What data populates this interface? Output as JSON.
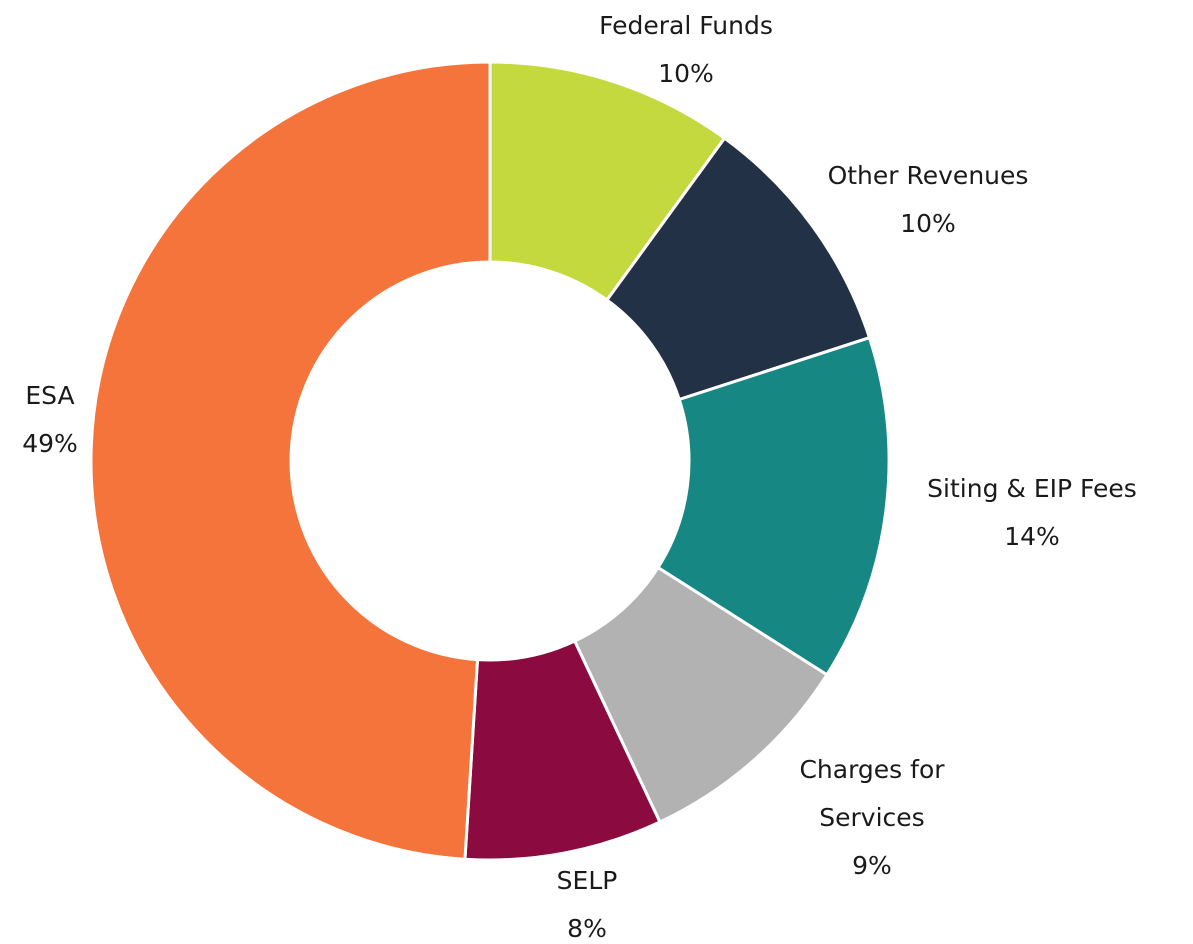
{
  "chart_data": {
    "type": "donut",
    "categories": [
      "Federal Funds",
      "Other Revenues",
      "Siting & EIP Fees",
      "Charges for Services",
      "SELP",
      "ESA"
    ],
    "values": [
      10,
      10,
      14,
      9,
      8,
      49
    ],
    "value_labels": [
      "10%",
      "10%",
      "14%",
      "9%",
      "8%",
      "49%"
    ],
    "colors": [
      "#c4d93e",
      "#233147",
      "#178784",
      "#b2b2b2",
      "#8b0b40",
      "#f4743b"
    ]
  }
}
